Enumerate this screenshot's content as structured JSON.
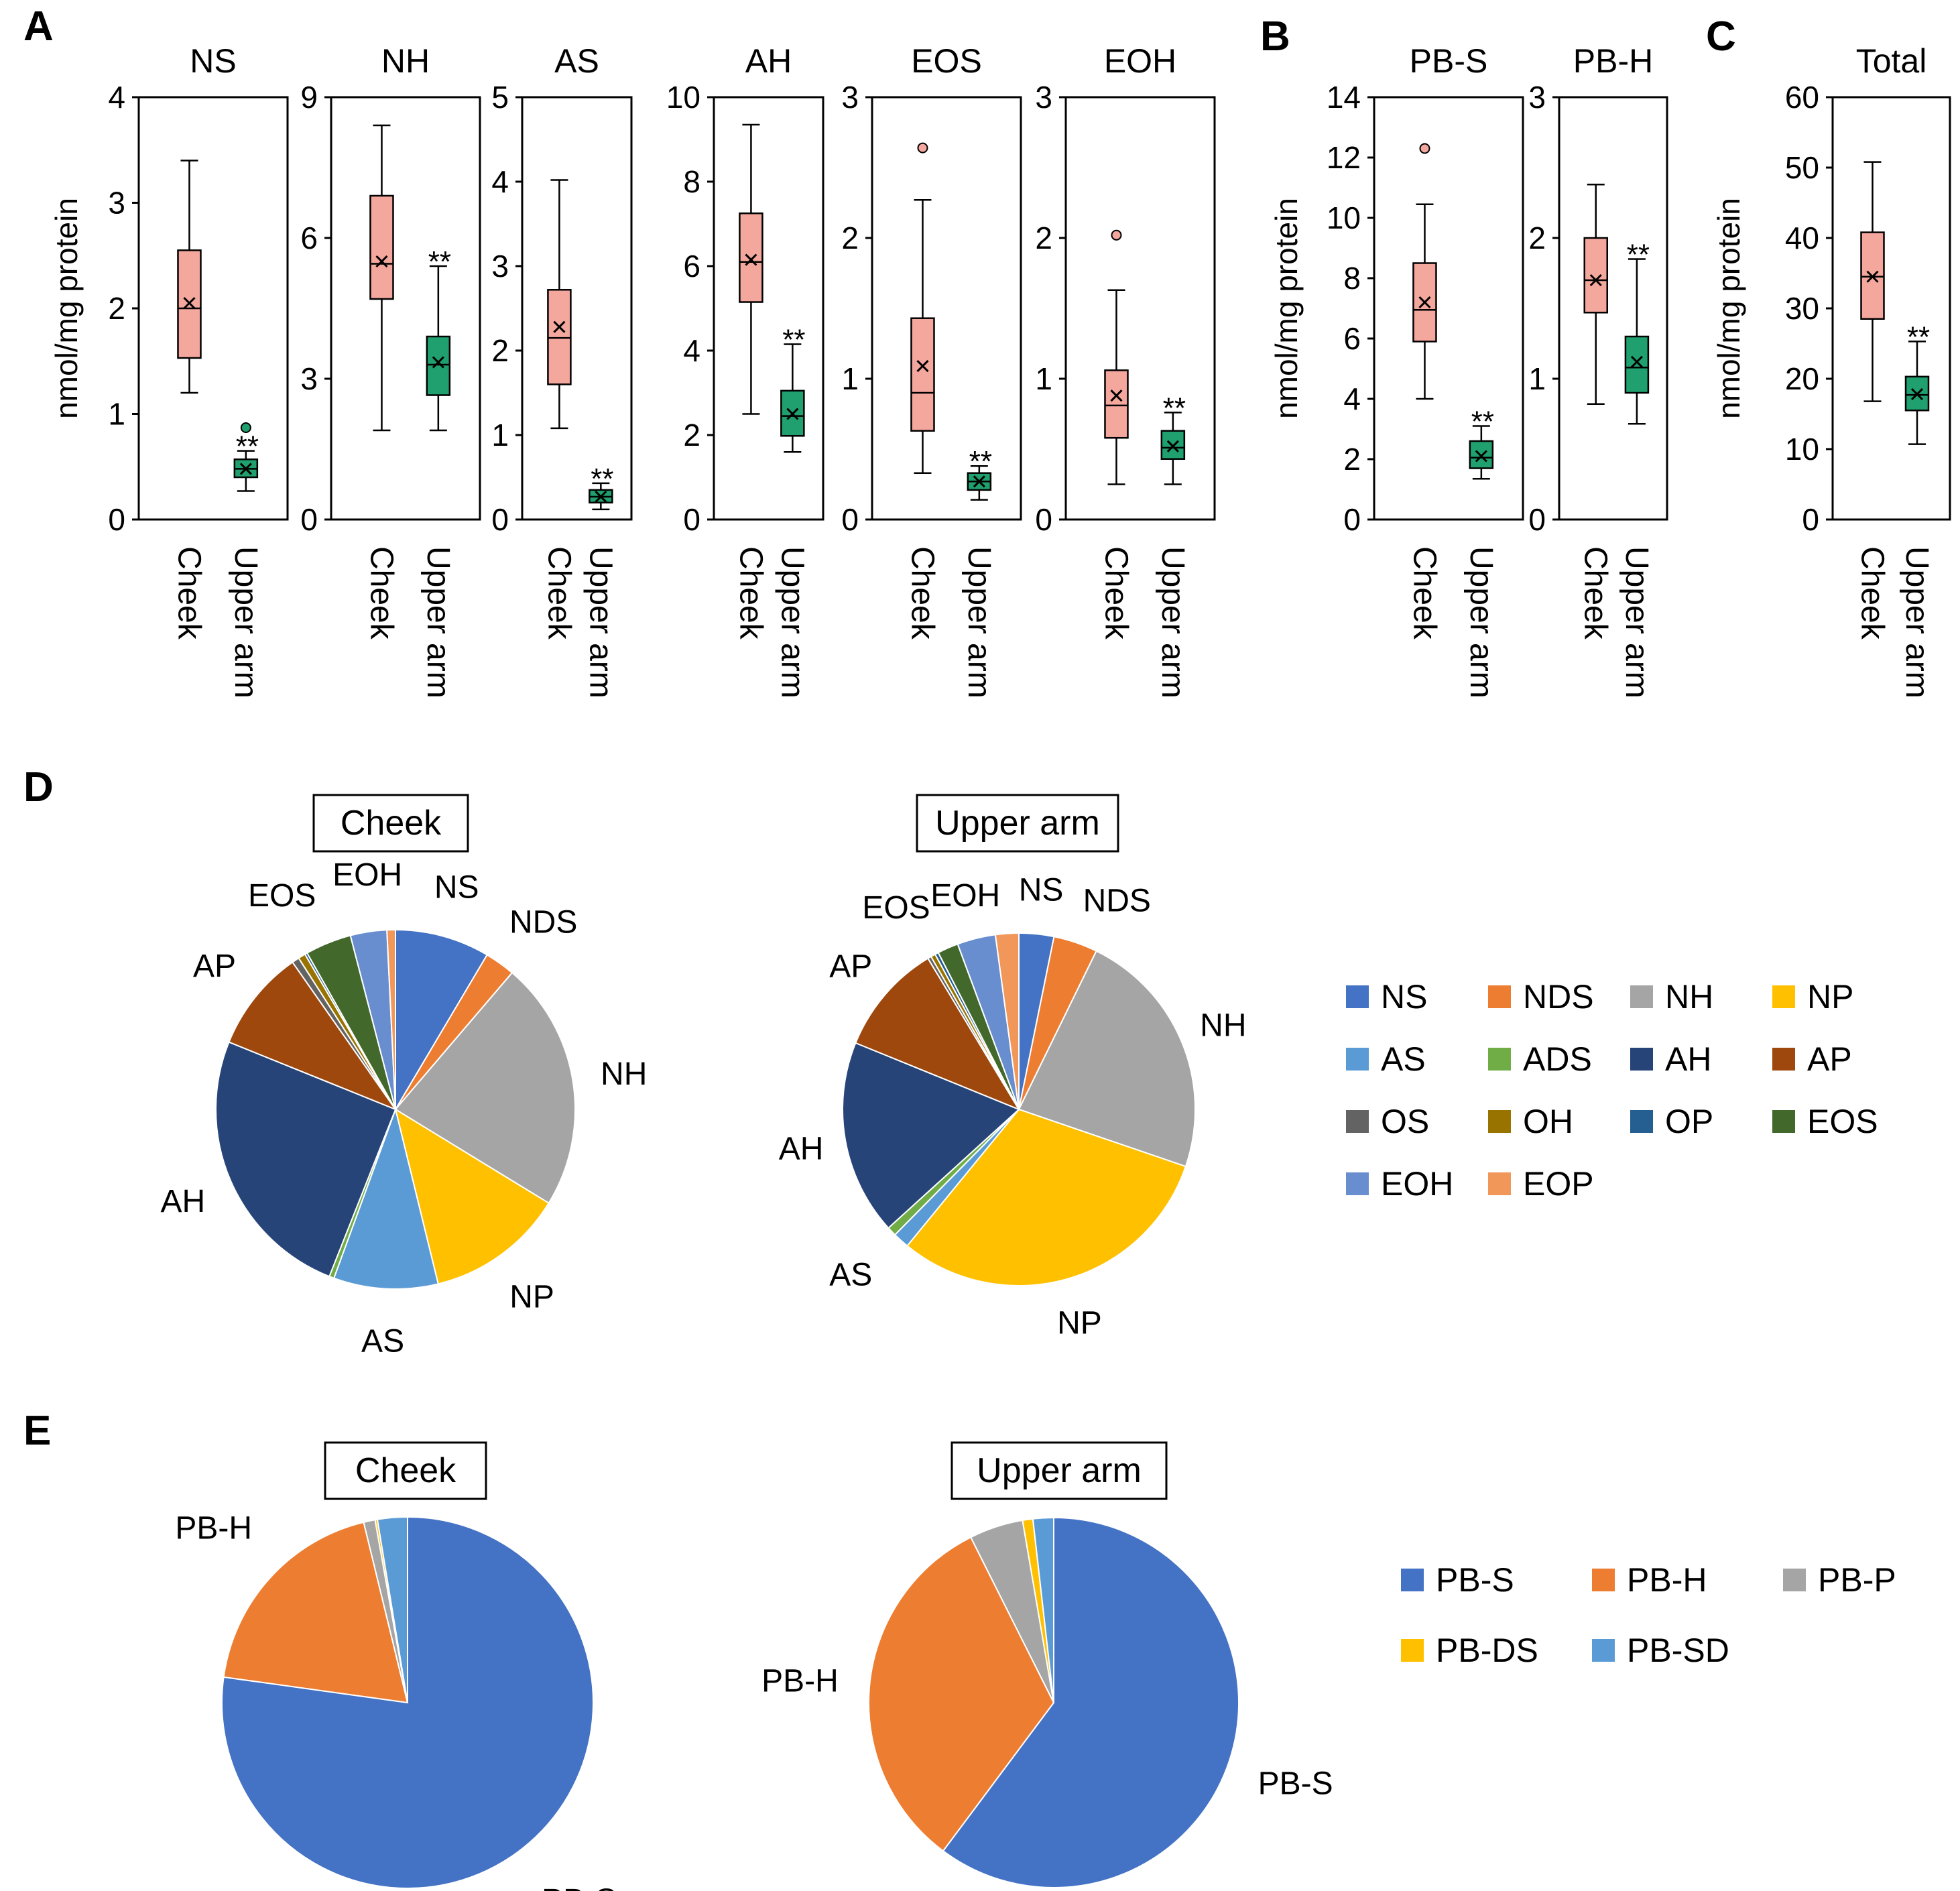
{
  "panel_labels": [
    "A",
    "B",
    "C",
    "D",
    "E"
  ],
  "y_axis_label": "nmol/mg protein",
  "significance": "**",
  "colors": {
    "cheek_box": "#f4a79d",
    "arm_box": "#1fa06e",
    "outlier_cheek": "#f4a79d",
    "outlier_arm": "#1fa06e"
  },
  "chart_data": [
    {
      "type": "box",
      "panel": "A",
      "title": "NS",
      "ylabel": "nmol/mg protein",
      "ylim": [
        0,
        4
      ],
      "yticks": [
        0,
        1,
        2,
        3,
        4
      ],
      "categories": [
        "Cheek",
        "Upper arm"
      ],
      "boxes": [
        {
          "group": "Cheek",
          "min": 1.2,
          "q1": 1.53,
          "median": 2.0,
          "q3": 2.55,
          "max": 3.4,
          "mean": 2.05,
          "outliers": []
        },
        {
          "group": "Upper arm",
          "min": 0.27,
          "q1": 0.4,
          "median": 0.48,
          "q3": 0.57,
          "max": 0.65,
          "mean": 0.48,
          "outliers": [
            0.87
          ]
        }
      ],
      "annotation": "**"
    },
    {
      "type": "box",
      "panel": "A",
      "title": "NH",
      "ylim": [
        0,
        9
      ],
      "yticks": [
        0,
        3,
        6,
        9
      ],
      "categories": [
        "Cheek",
        "Upper arm"
      ],
      "boxes": [
        {
          "group": "Cheek",
          "min": 1.9,
          "q1": 4.7,
          "median": 5.45,
          "q3": 6.9,
          "max": 8.4,
          "mean": 5.5,
          "outliers": []
        },
        {
          "group": "Upper arm",
          "min": 1.9,
          "q1": 2.65,
          "median": 3.3,
          "q3": 3.9,
          "max": 5.4,
          "mean": 3.35,
          "outliers": []
        }
      ],
      "annotation": "**"
    },
    {
      "type": "box",
      "panel": "A",
      "title": "AS",
      "ylim": [
        0,
        5
      ],
      "yticks": [
        0,
        1,
        2,
        3,
        4,
        5
      ],
      "categories": [
        "Cheek",
        "Upper arm"
      ],
      "boxes": [
        {
          "group": "Cheek",
          "min": 1.08,
          "q1": 1.6,
          "median": 2.15,
          "q3": 2.72,
          "max": 4.02,
          "mean": 2.28,
          "outliers": []
        },
        {
          "group": "Upper arm",
          "min": 0.12,
          "q1": 0.2,
          "median": 0.27,
          "q3": 0.35,
          "max": 0.43,
          "mean": 0.27,
          "outliers": []
        }
      ],
      "annotation": "**"
    },
    {
      "type": "box",
      "panel": "A",
      "title": "AH",
      "ylim": [
        0,
        10
      ],
      "yticks": [
        0,
        2,
        4,
        6,
        8,
        10
      ],
      "categories": [
        "Cheek",
        "Upper arm"
      ],
      "boxes": [
        {
          "group": "Cheek",
          "min": 2.5,
          "q1": 5.15,
          "median": 6.1,
          "q3": 7.25,
          "max": 9.35,
          "mean": 6.15,
          "outliers": []
        },
        {
          "group": "Upper arm",
          "min": 1.6,
          "q1": 1.98,
          "median": 2.45,
          "q3": 3.05,
          "max": 4.15,
          "mean": 2.5,
          "outliers": []
        }
      ],
      "annotation": "**"
    },
    {
      "type": "box",
      "panel": "A",
      "title": "EOS",
      "ylim": [
        0,
        3
      ],
      "yticks": [
        0,
        1,
        2,
        3
      ],
      "categories": [
        "Cheek",
        "Upper arm"
      ],
      "boxes": [
        {
          "group": "Cheek",
          "min": 0.33,
          "q1": 0.63,
          "median": 0.9,
          "q3": 1.43,
          "max": 2.27,
          "mean": 1.09,
          "outliers": [
            2.64
          ]
        },
        {
          "group": "Upper arm",
          "min": 0.14,
          "q1": 0.21,
          "median": 0.27,
          "q3": 0.33,
          "max": 0.38,
          "mean": 0.27,
          "outliers": []
        }
      ],
      "annotation": "**"
    },
    {
      "type": "box",
      "panel": "A",
      "title": "EOH",
      "ylim": [
        0,
        3
      ],
      "yticks": [
        0,
        1,
        2,
        3
      ],
      "categories": [
        "Cheek",
        "Upper arm"
      ],
      "boxes": [
        {
          "group": "Cheek",
          "min": 0.25,
          "q1": 0.58,
          "median": 0.81,
          "q3": 1.06,
          "max": 1.63,
          "mean": 0.88,
          "outliers": [
            2.02
          ]
        },
        {
          "group": "Upper arm",
          "min": 0.25,
          "q1": 0.43,
          "median": 0.51,
          "q3": 0.63,
          "max": 0.76,
          "mean": 0.52,
          "outliers": []
        }
      ],
      "annotation": "**"
    },
    {
      "type": "box",
      "panel": "B",
      "title": "PB-S",
      "ylabel": "nmol/mg protein",
      "ylim": [
        0,
        14
      ],
      "yticks": [
        0,
        2,
        4,
        6,
        8,
        10,
        12,
        14
      ],
      "categories": [
        "Cheek",
        "Upper arm"
      ],
      "boxes": [
        {
          "group": "Cheek",
          "min": 4.0,
          "q1": 5.9,
          "median": 6.95,
          "q3": 8.5,
          "max": 10.45,
          "mean": 7.2,
          "outliers": [
            12.3
          ]
        },
        {
          "group": "Upper arm",
          "min": 1.35,
          "q1": 1.7,
          "median": 2.05,
          "q3": 2.6,
          "max": 3.1,
          "mean": 2.1,
          "outliers": []
        }
      ],
      "annotation": "**"
    },
    {
      "type": "box",
      "panel": "B",
      "title": "PB-H",
      "ylim": [
        0,
        3
      ],
      "yticks": [
        0,
        1,
        2,
        3
      ],
      "categories": [
        "Cheek",
        "Upper arm"
      ],
      "boxes": [
        {
          "group": "Cheek",
          "min": 0.82,
          "q1": 1.47,
          "median": 1.7,
          "q3": 2.0,
          "max": 2.38,
          "mean": 1.7,
          "outliers": []
        },
        {
          "group": "Upper arm",
          "min": 0.68,
          "q1": 0.9,
          "median": 1.08,
          "q3": 1.3,
          "max": 1.85,
          "mean": 1.12,
          "outliers": []
        }
      ],
      "annotation": "**"
    },
    {
      "type": "box",
      "panel": "C",
      "title": "Total",
      "ylabel": "nmol/mg protein",
      "ylim": [
        0,
        60
      ],
      "yticks": [
        0,
        10,
        20,
        30,
        40,
        50,
        60
      ],
      "categories": [
        "Cheek",
        "Upper arm"
      ],
      "boxes": [
        {
          "group": "Cheek",
          "min": 16.8,
          "q1": 28.5,
          "median": 34.5,
          "q3": 40.8,
          "max": 50.8,
          "mean": 34.5,
          "outliers": []
        },
        {
          "group": "Upper arm",
          "min": 10.7,
          "q1": 15.5,
          "median": 17.7,
          "q3": 20.3,
          "max": 25.3,
          "mean": 17.8,
          "outliers": []
        }
      ],
      "annotation": "**"
    },
    {
      "type": "pie",
      "panel": "D",
      "title": "Cheek",
      "slices": [
        {
          "label": "NS",
          "value": 7.8,
          "color": "#4472c4",
          "show": true
        },
        {
          "label": "NDS",
          "value": 2.5,
          "color": "#ed7d31",
          "show": true
        },
        {
          "label": "NH",
          "value": 20.6,
          "color": "#a5a5a5",
          "show": true
        },
        {
          "label": "NP",
          "value": 11.4,
          "color": "#ffc000",
          "show": true
        },
        {
          "label": "AS",
          "value": 8.6,
          "color": "#5b9bd5",
          "show": true
        },
        {
          "label": "ADS",
          "value": 0.4,
          "color": "#70ad47",
          "show": false
        },
        {
          "label": "AH",
          "value": 23.0,
          "color": "#264478",
          "show": true
        },
        {
          "label": "AP",
          "value": 8.4,
          "color": "#9e480e",
          "show": true
        },
        {
          "label": "OS",
          "value": 0.6,
          "color": "#636363",
          "show": false
        },
        {
          "label": "OH",
          "value": 0.6,
          "color": "#997300",
          "show": false
        },
        {
          "label": "OP",
          "value": 0.2,
          "color": "#255e91",
          "show": false
        },
        {
          "label": "EOS",
          "value": 3.8,
          "color": "#43682b",
          "show": true
        },
        {
          "label": "EOH",
          "value": 3.0,
          "color": "#698ed0",
          "show": true
        },
        {
          "label": "EOP",
          "value": 0.7,
          "color": "#f1975a",
          "show": false
        }
      ]
    },
    {
      "type": "pie",
      "panel": "D",
      "title": "Upper arm",
      "slices": [
        {
          "label": "NS",
          "value": 3.0,
          "color": "#4472c4",
          "show": true
        },
        {
          "label": "NDS",
          "value": 3.8,
          "color": "#ed7d31",
          "show": true
        },
        {
          "label": "NH",
          "value": 21.6,
          "color": "#a5a5a5",
          "show": true
        },
        {
          "label": "NP",
          "value": 28.8,
          "color": "#ffc000",
          "show": true
        },
        {
          "label": "AS",
          "value": 1.4,
          "color": "#5b9bd5",
          "show": true
        },
        {
          "label": "ADS",
          "value": 0.8,
          "color": "#70ad47",
          "show": false
        },
        {
          "label": "AH",
          "value": 16.8,
          "color": "#264478",
          "show": true
        },
        {
          "label": "AP",
          "value": 9.6,
          "color": "#9e480e",
          "show": true
        },
        {
          "label": "OS",
          "value": 0.3,
          "color": "#636363",
          "show": false
        },
        {
          "label": "OH",
          "value": 0.4,
          "color": "#997300",
          "show": false
        },
        {
          "label": "OP",
          "value": 0.3,
          "color": "#255e91",
          "show": false
        },
        {
          "label": "EOS",
          "value": 1.8,
          "color": "#43682b",
          "show": true
        },
        {
          "label": "EOH",
          "value": 3.3,
          "color": "#698ed0",
          "show": true
        },
        {
          "label": "EOP",
          "value": 2.0,
          "color": "#f1975a",
          "show": false
        }
      ]
    },
    {
      "type": "pie",
      "panel": "E",
      "title": "Cheek",
      "slices": [
        {
          "label": "PB-S",
          "value": 77.2,
          "color": "#4472c4",
          "show": true
        },
        {
          "label": "PB-H",
          "value": 19.0,
          "color": "#ed7d31",
          "show": true
        },
        {
          "label": "PB-P",
          "value": 1.0,
          "color": "#a5a5a5",
          "show": false
        },
        {
          "label": "PB-DS",
          "value": 0.2,
          "color": "#ffc000",
          "show": false
        },
        {
          "label": "PB-SD",
          "value": 2.6,
          "color": "#5b9bd5",
          "show": false
        }
      ]
    },
    {
      "type": "pie",
      "panel": "E",
      "title": "Upper arm",
      "slices": [
        {
          "label": "PB-S",
          "value": 60.2,
          "color": "#4472c4",
          "show": true
        },
        {
          "label": "PB-H",
          "value": 32.4,
          "color": "#ed7d31",
          "show": true
        },
        {
          "label": "PB-P",
          "value": 4.7,
          "color": "#a5a5a5",
          "show": false
        },
        {
          "label": "PB-DS",
          "value": 0.9,
          "color": "#ffc000",
          "show": false
        },
        {
          "label": "PB-SD",
          "value": 1.8,
          "color": "#5b9bd5",
          "show": false
        }
      ]
    }
  ],
  "legend_d": [
    {
      "label": "NS",
      "color": "#4472c4"
    },
    {
      "label": "NDS",
      "color": "#ed7d31"
    },
    {
      "label": "NH",
      "color": "#a5a5a5"
    },
    {
      "label": "NP",
      "color": "#ffc000"
    },
    {
      "label": "AS",
      "color": "#5b9bd5"
    },
    {
      "label": "ADS",
      "color": "#70ad47"
    },
    {
      "label": "AH",
      "color": "#264478"
    },
    {
      "label": "AP",
      "color": "#9e480e"
    },
    {
      "label": "OS",
      "color": "#636363"
    },
    {
      "label": "OH",
      "color": "#997300"
    },
    {
      "label": "OP",
      "color": "#255e91"
    },
    {
      "label": "EOS",
      "color": "#43682b"
    },
    {
      "label": "EOH",
      "color": "#698ed0"
    },
    {
      "label": "EOP",
      "color": "#f1975a"
    }
  ],
  "legend_e": [
    {
      "label": "PB-S",
      "color": "#4472c4"
    },
    {
      "label": "PB-H",
      "color": "#ed7d31"
    },
    {
      "label": "PB-P",
      "color": "#a5a5a5"
    },
    {
      "label": "PB-DS",
      "color": "#ffc000"
    },
    {
      "label": "PB-SD",
      "color": "#5b9bd5"
    }
  ]
}
